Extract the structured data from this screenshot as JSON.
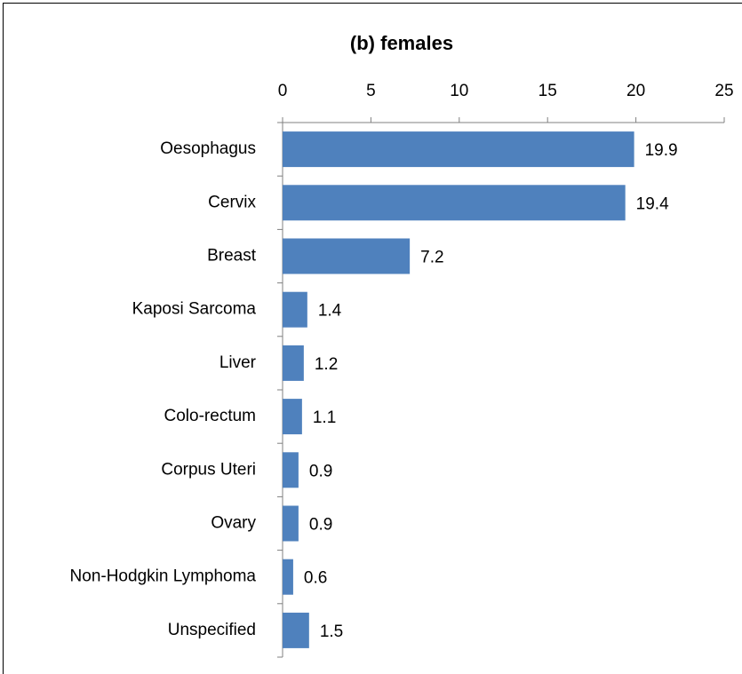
{
  "chart_data": {
    "type": "bar",
    "orientation": "horizontal",
    "title": "(b) females",
    "categories": [
      "Oesophagus",
      "Cervix",
      "Breast",
      "Kaposi Sarcoma",
      "Liver",
      "Colo-rectum",
      "Corpus Uteri",
      "Ovary",
      "Non-Hodgkin Lymphoma",
      "Unspecified"
    ],
    "values": [
      19.9,
      19.4,
      7.2,
      1.4,
      1.2,
      1.1,
      0.9,
      0.9,
      0.6,
      1.5
    ],
    "color": "#4f81bd",
    "xlim": [
      0,
      25
    ],
    "xticks": [
      0,
      5,
      10,
      15,
      20,
      25
    ]
  }
}
